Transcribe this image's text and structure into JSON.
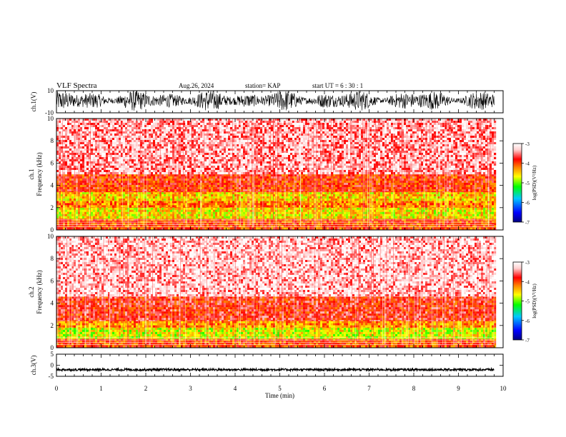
{
  "header": {
    "title": "VLF Spectra",
    "date": "Aug.26, 2024",
    "station": "station= KAP",
    "start": "start  UT =   6  : 30 : 1"
  },
  "colors": {
    "background": "#ffffff",
    "axis": "#000000",
    "waveform": "#000000",
    "colormap": [
      "#000080",
      "#0000ff",
      "#00c8ff",
      "#00ff00",
      "#ffff00",
      "#ff8000",
      "#ff0000",
      "#ffd0d0",
      "#ffffff"
    ]
  },
  "chart_data": [
    {
      "type": "line",
      "ylabel": "ch.1(V)",
      "ylim": [
        -10,
        10
      ],
      "ytick_labels": [
        "10",
        "-10"
      ],
      "xlim": [
        0,
        10
      ],
      "grid": false,
      "note_series": "dense broadband waveform, amplitude roughly between -8 and +10 V over 0 to 9.8 min"
    },
    {
      "type": "heatmap",
      "ylabel": "ch.1\nFrequency  (kHz)",
      "ylabel_line1": "ch.1",
      "ylabel_line2": "Frequency  (kHz)",
      "ylim": [
        0,
        10
      ],
      "ytick_labels": [
        "0",
        "2",
        "4",
        "6",
        "8",
        "10"
      ],
      "xlim": [
        0,
        10
      ],
      "data_xmax": 9.8,
      "colorbar": {
        "label": "log(PSD)(V²/Hz)",
        "range": [
          -7,
          -3
        ],
        "tick_labels": [
          "-3",
          "-4",
          "-5",
          "-6",
          "-7"
        ]
      },
      "bands": [
        {
          "f_low": 0.0,
          "f_high": 1.0,
          "level": -4.0
        },
        {
          "f_low": 1.0,
          "f_high": 2.0,
          "level": -4.6
        },
        {
          "f_low": 2.0,
          "f_high": 2.6,
          "level": -4.2
        },
        {
          "f_low": 2.6,
          "f_high": 3.4,
          "level": -4.5
        },
        {
          "f_low": 3.4,
          "f_high": 5.0,
          "level": -3.9
        },
        {
          "f_low": 5.0,
          "f_high": 10.0,
          "level": -3.4
        }
      ]
    },
    {
      "type": "heatmap",
      "ylabel": "ch.2\nFrequency  (kHz)",
      "ylabel_line1": "ch.2",
      "ylabel_line2": "Frequency  (kHz)",
      "ylim": [
        0,
        10
      ],
      "ytick_labels": [
        "0",
        "2",
        "4",
        "6",
        "8",
        "10"
      ],
      "xlim": [
        0,
        10
      ],
      "data_xmax": 9.8,
      "colorbar": {
        "label": "log(PSD)(V²/Hz)",
        "range": [
          -7,
          -3
        ],
        "tick_labels": [
          "-3",
          "-4",
          "-5",
          "-6",
          "-7"
        ]
      },
      "bands": [
        {
          "f_low": 0.0,
          "f_high": 0.8,
          "level": -4.0
        },
        {
          "f_low": 0.8,
          "f_high": 1.8,
          "level": -4.7
        },
        {
          "f_low": 1.8,
          "f_high": 2.4,
          "level": -4.3
        },
        {
          "f_low": 2.4,
          "f_high": 4.6,
          "level": -3.8
        },
        {
          "f_low": 4.6,
          "f_high": 10.0,
          "level": -3.3
        }
      ]
    },
    {
      "type": "line",
      "ylabel": "ch.3(V)",
      "ylim": [
        -5,
        5
      ],
      "ytick_labels": [
        "5",
        "0",
        "-5"
      ],
      "xlim": [
        0,
        10
      ],
      "grid": false,
      "xlabel": "Time  (min)",
      "xtick_labels": [
        "0",
        "1",
        "2",
        "3",
        "4",
        "5",
        "6",
        "7",
        "8",
        "9",
        "10"
      ],
      "note_series": "nearly flat trace around -2 V, amplitude about ±0.5 V"
    }
  ]
}
